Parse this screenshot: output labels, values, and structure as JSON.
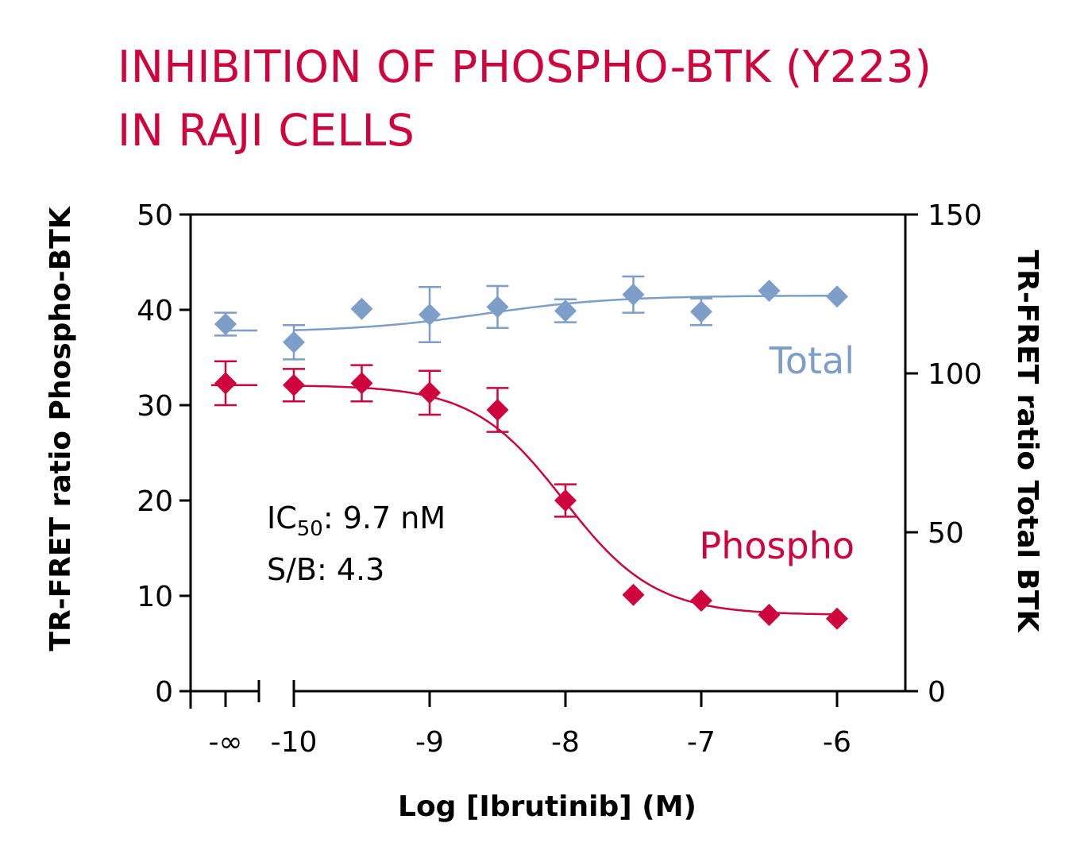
{
  "title": [
    "INHIBITION OF PHOSPHO-BTK (Y223)",
    "IN RAJI CELLS"
  ],
  "colors": {
    "title": "#d0043c",
    "phospho": "#d0043c",
    "total": "#7d9ec9",
    "axis": "#000000"
  },
  "chart_data": {
    "type": "scatter",
    "xlabel": "Log [Ibrutinib] (M)",
    "ylabel_left": "TR-FRET ratio Phospho-BTK",
    "ylabel_right": "TR-FRET ratio Total BTK",
    "x_ticks": [
      "-∞",
      "-10",
      "-9",
      "-8",
      "-7",
      "-6"
    ],
    "ylim_left": [
      0,
      50
    ],
    "yticks_left": [
      "0",
      "10",
      "20",
      "30",
      "40",
      "50"
    ],
    "ylim_right": [
      0,
      150
    ],
    "yticks_right": [
      "0",
      "50",
      "100",
      "150"
    ],
    "axis_break": true,
    "series": [
      {
        "name": "Phospho",
        "axis": "left",
        "marker": "diamond",
        "x": [
          "-∞",
          -10,
          -9.5,
          -9,
          -8.5,
          -8,
          -7.5,
          -7,
          -6.5,
          -6
        ],
        "y": [
          32.3,
          32.1,
          32.3,
          31.3,
          29.5,
          20.0,
          10.1,
          9.5,
          8.0,
          7.6
        ],
        "error": [
          2.3,
          1.7,
          1.9,
          2.3,
          2.3,
          1.7,
          0,
          0,
          0,
          0
        ],
        "fit": {
          "model": "4PL",
          "top": 32.1,
          "bottom": 8.0,
          "log_ic50": -8.013,
          "hill": 1.3
        }
      },
      {
        "name": "Total",
        "axis": "right",
        "marker": "diamond",
        "x": [
          "-∞",
          -10,
          -9.5,
          -9,
          -8.5,
          -8,
          -7.5,
          -7,
          -6.5,
          -6
        ],
        "y": [
          115.5,
          109.8,
          120.3,
          118.5,
          120.9,
          119.7,
          124.8,
          119.4,
          126.0,
          124.2
        ],
        "error": [
          3.6,
          5.4,
          0,
          8.7,
          6.6,
          3.6,
          5.7,
          4.2,
          0,
          0
        ]
      }
    ],
    "annotations": {
      "ic50_prefix": "IC",
      "ic50_sub": "50",
      "ic50_value": ": 9.7 nM",
      "sb": "S/B: 4.3"
    }
  }
}
